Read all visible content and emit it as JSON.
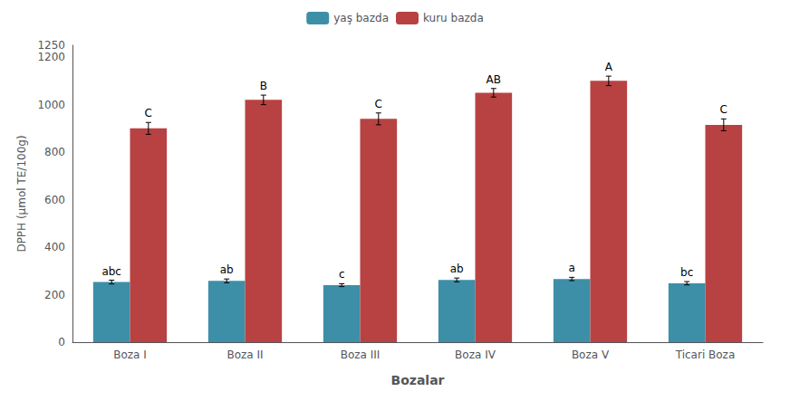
{
  "chart_data": {
    "type": "bar",
    "xlabel": "Bozalar",
    "ylabel": "DPPH (μmol TE/100g)",
    "categories": [
      "Boza I",
      "Boza II",
      "Boza III",
      "Boza IV",
      "Boza V",
      "Ticari Boza"
    ],
    "series": [
      {
        "name": "yaş bazda",
        "color": "#3d8fa8",
        "values": [
          253,
          258,
          240,
          262,
          266,
          248
        ],
        "errors": [
          8,
          8,
          6,
          8,
          7,
          7
        ],
        "annotations": [
          "abc",
          "ab",
          "c",
          "ab",
          "a",
          "bc"
        ]
      },
      {
        "name": "kuru bazda",
        "color": "#b84242",
        "values": [
          900,
          1020,
          940,
          1050,
          1100,
          915
        ],
        "errors": [
          25,
          20,
          25,
          18,
          20,
          25
        ],
        "annotations": [
          "C",
          "B",
          "C",
          "AB",
          "A",
          "C"
        ]
      }
    ],
    "ylim": [
      0,
      1250
    ],
    "yticks": [
      0,
      200,
      400,
      600,
      800,
      1000,
      1200
    ],
    "grid": false,
    "legend": "upper center"
  }
}
